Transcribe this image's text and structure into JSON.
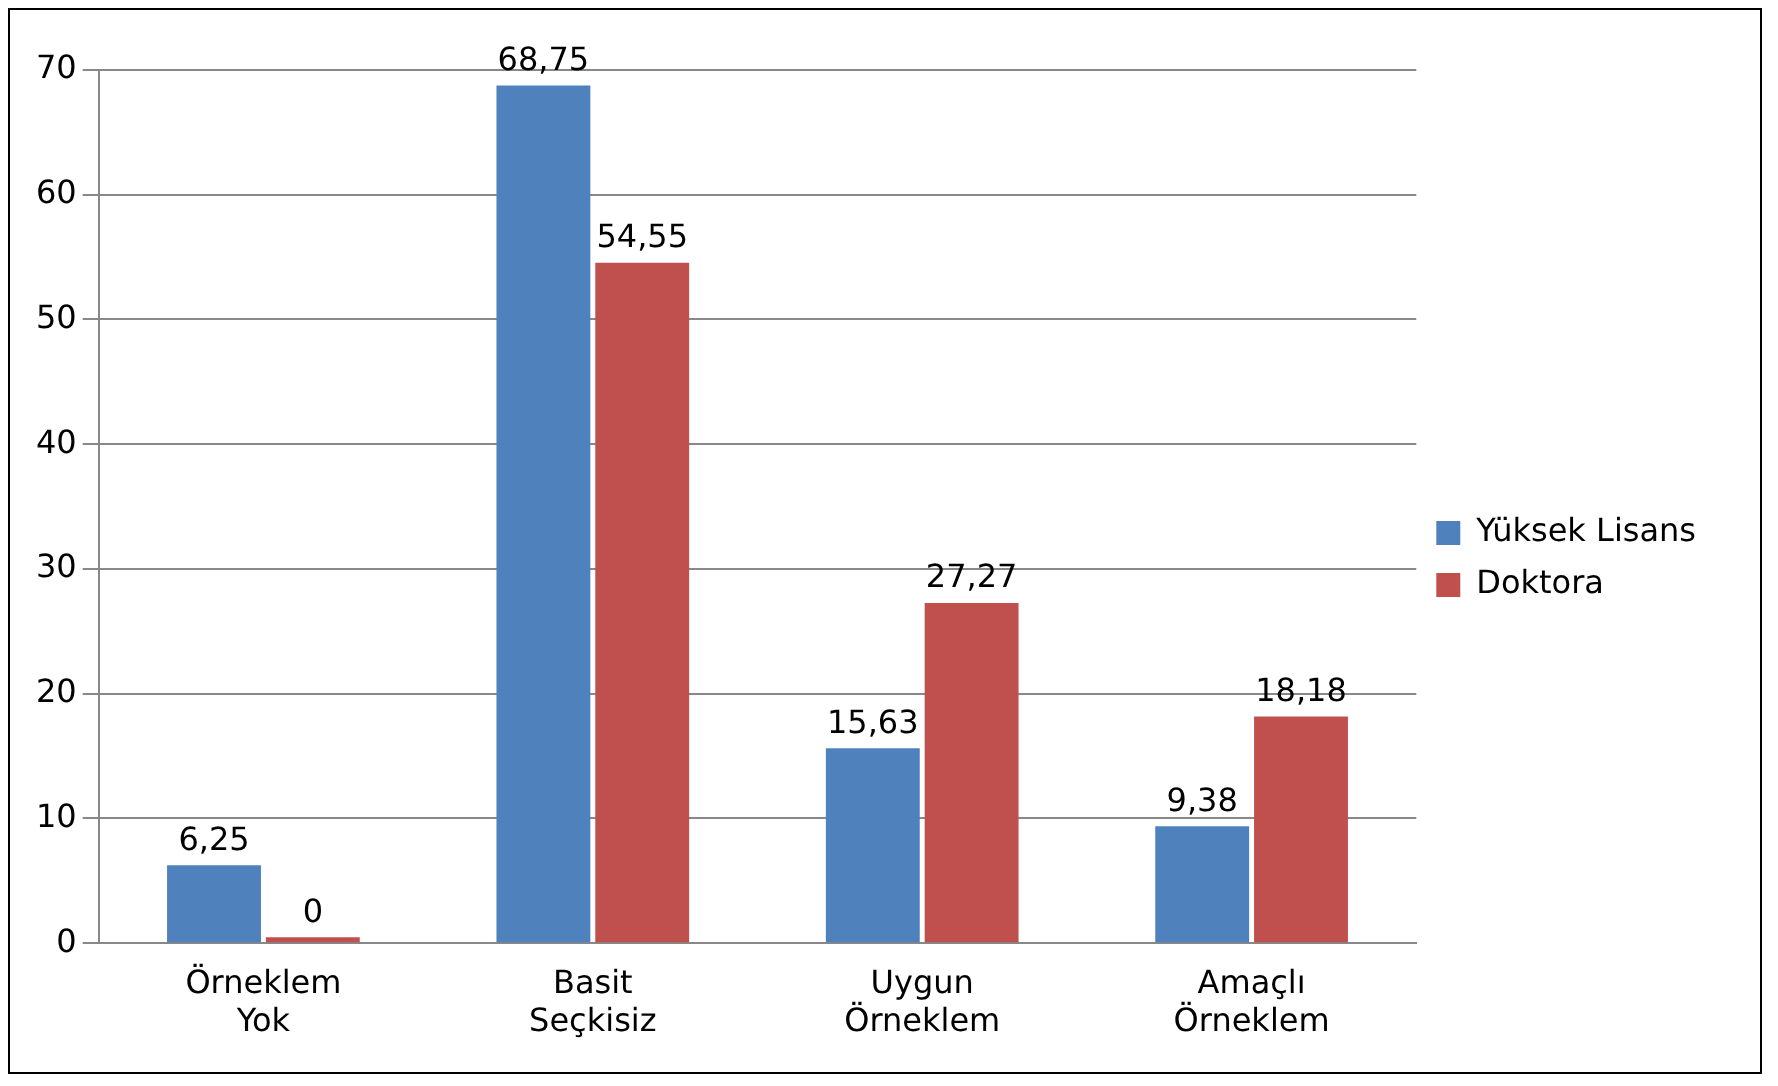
{
  "chart_data": {
    "type": "bar",
    "categories": [
      "Örneklem Yok",
      "Basit Seçkisiz",
      "Uygun Örneklem",
      "Amaçlı Örneklem"
    ],
    "series": [
      {
        "name": "Yüksek Lisans",
        "color": "#4f81bd",
        "values": [
          6.25,
          68.75,
          15.63,
          9.38
        ],
        "value_labels": [
          "6,25",
          "68,75",
          "15,63",
          "9,38"
        ]
      },
      {
        "name": "Doktora",
        "color": "#c0504d",
        "values": [
          0,
          54.55,
          27.27,
          18.18
        ],
        "value_labels": [
          "0",
          "54,55",
          "27,27",
          "18,18"
        ]
      }
    ],
    "ylim": [
      0,
      70
    ],
    "yticks": [
      0,
      10,
      20,
      30,
      40,
      50,
      60,
      70
    ],
    "grid": "y",
    "legend": "right"
  }
}
